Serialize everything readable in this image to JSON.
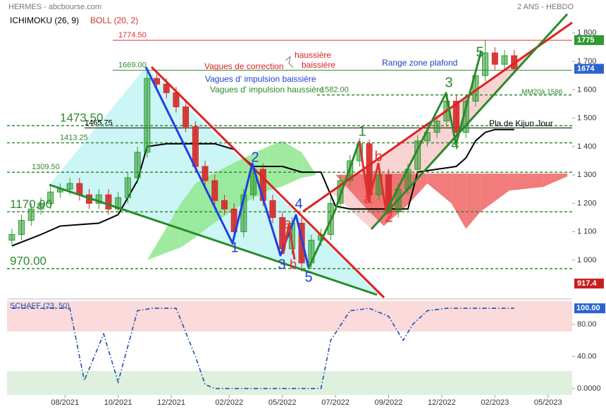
{
  "header": {
    "source": "HERMES - abcbourse.com",
    "period": "2 ANS - HEBDO",
    "ichimoku": "ICHIMOKU (26, 9)",
    "boll": "BOLL (20, 2)"
  },
  "chart_data": [
    {
      "type": "candlestick",
      "x": [
        0,
        2,
        4,
        6,
        8,
        10,
        12,
        14,
        16,
        18,
        20,
        22,
        24,
        26,
        28,
        30,
        32,
        34,
        36,
        38,
        40,
        42,
        44,
        46,
        48,
        50,
        52,
        54,
        56,
        58,
        60,
        62,
        64,
        66,
        68,
        70,
        72,
        74,
        76,
        78,
        80,
        82,
        84,
        86,
        88,
        90,
        92,
        94,
        96,
        98,
        100,
        102,
        104
      ],
      "open": [
        1070,
        1090,
        1140,
        1180,
        1200,
        1240,
        1250,
        1270,
        1230,
        1200,
        1230,
        1180,
        1220,
        1290,
        1380,
        1640,
        1620,
        1590,
        1540,
        1470,
        1330,
        1280,
        1210,
        1180,
        1100,
        1230,
        1320,
        1210,
        1150,
        1040,
        1130,
        990,
        1070,
        1090,
        1200,
        1280,
        1350,
        1410,
        1230,
        1300,
        1170,
        1250,
        1320,
        1420,
        1450,
        1490,
        1560,
        1450,
        1560,
        1650,
        1730,
        1690,
        1720
      ],
      "high": [
        1110,
        1160,
        1200,
        1220,
        1260,
        1270,
        1290,
        1290,
        1250,
        1250,
        1250,
        1240,
        1310,
        1400,
        1669,
        1655,
        1640,
        1610,
        1560,
        1490,
        1350,
        1300,
        1230,
        1200,
        1250,
        1340,
        1340,
        1230,
        1170,
        1150,
        1150,
        1090,
        1110,
        1220,
        1300,
        1370,
        1430,
        1425,
        1320,
        1320,
        1270,
        1340,
        1440,
        1470,
        1510,
        1580,
        1580,
        1580,
        1670,
        1775,
        1750,
        1740,
        1740
      ],
      "low": [
        1050,
        1070,
        1120,
        1160,
        1180,
        1220,
        1230,
        1210,
        1180,
        1180,
        1160,
        1160,
        1200,
        1270,
        1360,
        1600,
        1570,
        1520,
        1450,
        1310,
        1260,
        1190,
        1160,
        1080,
        1080,
        1210,
        1190,
        1130,
        1020,
        1020,
        960,
        970,
        1050,
        1070,
        1180,
        1260,
        1330,
        1210,
        1210,
        1150,
        1150,
        1230,
        1300,
        1400,
        1430,
        1470,
        1430,
        1430,
        1540,
        1630,
        1670,
        1670,
        1660
      ],
      "close": [
        1090,
        1140,
        1180,
        1200,
        1240,
        1250,
        1270,
        1230,
        1200,
        1230,
        1180,
        1220,
        1290,
        1380,
        1640,
        1620,
        1590,
        1540,
        1470,
        1330,
        1280,
        1210,
        1180,
        1100,
        1230,
        1320,
        1210,
        1150,
        1040,
        1130,
        990,
        1070,
        1090,
        1200,
        1280,
        1350,
        1410,
        1230,
        1300,
        1170,
        1250,
        1320,
        1420,
        1450,
        1490,
        1560,
        1450,
        1560,
        1650,
        1730,
        1690,
        1720,
        1674
      ],
      "up_color": "#2f9a2f",
      "down_color": "#d42a2a",
      "xlim": [
        -1,
        116
      ],
      "ylim": [
        863,
        1817
      ],
      "yticks": [
        {
          "value": 1800,
          "label": "1 800"
        },
        {
          "value": 1700,
          "label": "1 700"
        },
        {
          "value": 1600,
          "label": "1 600"
        },
        {
          "value": 1500,
          "label": "1 500"
        },
        {
          "value": 1400,
          "label": "1 400"
        },
        {
          "value": 1300,
          "label": "1 300"
        },
        {
          "value": 1200,
          "label": "1 200"
        },
        {
          "value": 1100,
          "label": "1 100"
        },
        {
          "value": 1000,
          "label": "1 000"
        }
      ],
      "kijun": {
        "x": [
          0,
          3,
          6,
          10,
          18,
          22,
          26,
          28,
          32,
          42,
          46,
          50,
          56,
          60,
          64,
          67,
          70,
          80,
          82,
          84,
          88,
          92,
          94,
          96,
          98,
          100,
          104
        ],
        "values": [
          1050,
          1070,
          1090,
          1120,
          1130,
          1160,
          1280,
          1400,
          1410,
          1410,
          1390,
          1330,
          1330,
          1310,
          1310,
          1190,
          1180,
          1180,
          1180,
          1310,
          1320,
          1330,
          1360,
          1420,
          1450,
          1460,
          1460
        ],
        "color": "#000000"
      },
      "cloud": {
        "x": [
          28,
          35,
          38,
          41,
          48,
          53,
          56,
          59,
          60,
          63,
          67,
          74,
          77,
          82,
          86,
          91,
          94,
          97,
          103,
          110,
          115
        ],
        "span_a": [
          1000,
          1200,
          1270,
          1300,
          1360,
          1400,
          1420,
          1390,
          1380,
          1300,
          1300,
          1170,
          1120,
          1195,
          1270,
          1200,
          1110,
          1170,
          1245,
          1258,
          1295
        ],
        "span_b": [
          1000,
          1045,
          1080,
          1120,
          1200,
          1245,
          1260,
          1283,
          1290,
          1300,
          1300,
          1305,
          1305,
          1305,
          1305,
          1305,
          1305,
          1305,
          1305,
          1305,
          1305
        ],
        "bull_color": "#8fe68f",
        "bear_color": "#f06464"
      },
      "levels": [
        {
          "value": 1774.5,
          "label": "1774.50",
          "color": "#e03030",
          "style": "solid"
        },
        {
          "value": 1669,
          "label": "1669.00",
          "color": "#2f8a2f",
          "style": "solid"
        },
        {
          "value": 1582,
          "label": "1582.00",
          "color": "#2f8a2f",
          "style": "dotted"
        },
        {
          "value": 1473.5,
          "label": "1473.50",
          "color": "#2f8a2f",
          "style": "dotted"
        },
        {
          "value": 1465.75,
          "label": "1465.75",
          "color": "#000000",
          "style": "solid"
        },
        {
          "value": 1413.25,
          "label": "1413.25",
          "color": "#2f8a2f",
          "style": "dotted"
        },
        {
          "value": 1309.5,
          "label": "1309.50",
          "color": "#2f8a2f",
          "style": "dotted"
        },
        {
          "value": 1170,
          "label": "1170.00",
          "color": "#2f8a2f",
          "style": "dotted"
        },
        {
          "value": 970,
          "label": "970.00",
          "color": "#2f8a2f",
          "style": "dotted"
        }
      ],
      "price_tags": [
        {
          "value": 1775,
          "color": "#2f9a2f"
        },
        {
          "value": 1674,
          "color": "#2a62d0"
        },
        {
          "value": 917.4,
          "color": "#c81e1e"
        }
      ],
      "annotations": [
        "Vagues de correction",
        "haussière",
        "baissière",
        "Vagues d' impulsion baissière",
        "Vagues d' impulsion haussière",
        "Range zone plafond",
        "MM20à 1586",
        "Pla de Kijun Jour",
        "1",
        "2",
        "3",
        "4",
        "5",
        "a",
        "b",
        "a",
        "b",
        "2",
        "1",
        "3",
        "4",
        "5"
      ]
    },
    {
      "type": "line",
      "title": "SCHAFF (23, 50)",
      "x": [
        0,
        12,
        15,
        19,
        22,
        26,
        29,
        34,
        38,
        40,
        42,
        64,
        66,
        70,
        74,
        78,
        81,
        83,
        86,
        90,
        104
      ],
      "values": [
        100,
        100,
        10,
        68,
        8,
        97,
        100,
        100,
        40,
        5,
        0,
        0,
        60,
        97,
        100,
        90,
        60,
        80,
        97,
        100,
        100
      ],
      "color": "#2050b0",
      "xlim": [
        -1,
        116
      ],
      "ylim": [
        -8,
        109
      ],
      "yticks": [
        {
          "value": 80,
          "label": "80.00"
        },
        {
          "value": 40,
          "label": "40.00"
        },
        {
          "value": 0,
          "label": "0.0000"
        }
      ],
      "xticks": [
        {
          "value": 11,
          "label": "08/2021"
        },
        {
          "value": 22,
          "label": "10/2021"
        },
        {
          "value": 33,
          "label": "12/2021"
        },
        {
          "value": 45,
          "label": "02/2022"
        },
        {
          "value": 56,
          "label": "05/2022"
        },
        {
          "value": 67,
          "label": "07/2022"
        },
        {
          "value": 78,
          "label": "09/2022"
        },
        {
          "value": 89,
          "label": "12/2022"
        },
        {
          "value": 100,
          "label": "02/2023"
        },
        {
          "value": 111,
          "label": "05/2023"
        }
      ],
      "price_tags": [
        {
          "value": 100,
          "label": "100.00",
          "color": "#2a62d0"
        }
      ]
    }
  ]
}
